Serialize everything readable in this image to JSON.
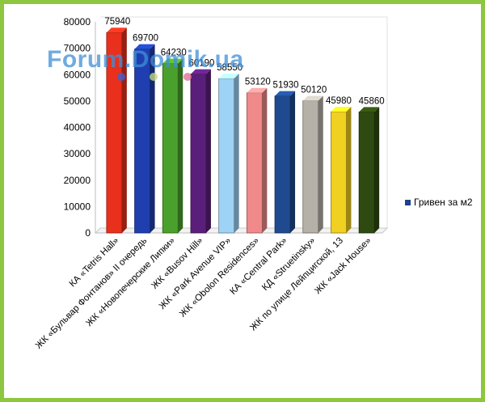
{
  "watermark": "Forum.Domik.ua",
  "legend": {
    "label": "Гривен за м2",
    "color": "#1f3f8f"
  },
  "chart_data": {
    "type": "bar",
    "title": "",
    "xlabel": "",
    "ylabel": "",
    "ylim": [
      0,
      80000
    ],
    "yticks": [
      "0",
      "10000",
      "20000",
      "30000",
      "40000",
      "50000",
      "60000",
      "70000",
      "80000"
    ],
    "grid": false,
    "legend_position": "right",
    "categories": [
      "КА «Tetris Hall»",
      "ЖК «Бульвар Фонтанов» II очередь",
      "ЖК «Новопечерские Липки»",
      "ЖК «Busov Hill»",
      "ЖК «Park Avenue VIP»",
      "ЖК «Obolon Residences»",
      "КА «Central Park»",
      "КД «Struetinsky»",
      "ЖК по улице Лейпцигской, 13",
      "ЖК «Jack House»"
    ],
    "series": [
      {
        "name": "Гривен за м2",
        "values": [
          75940,
          69700,
          64230,
          60190,
          58550,
          53120,
          51930,
          50120,
          45980,
          45860
        ],
        "data_labels": [
          "75940",
          "69700",
          "64230",
          "60190",
          "58550",
          "53120",
          "51930",
          "50120",
          "45980",
          "45860"
        ],
        "colors": [
          "#e8301c",
          "#1f3fb0",
          "#4aa02c",
          "#5a1f7a",
          "#9fd3f5",
          "#f08a8a",
          "#1f4a8f",
          "#b5b0a8",
          "#f0d020",
          "#2e4a10"
        ]
      }
    ]
  }
}
